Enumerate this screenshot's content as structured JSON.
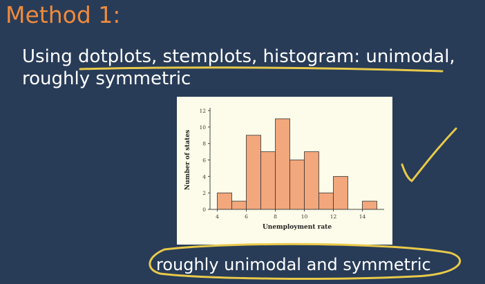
{
  "slide": {
    "title": "Method 1:",
    "bullet": "Using dotplots, stemplots, histogram: unimodal, roughly symmetric",
    "caption": "roughly unimodal and symmetric"
  },
  "colors": {
    "background": "#283c58",
    "title": "#f08a3c",
    "text": "#ffffff",
    "figure_bg": "#fdfbe9",
    "bar_fill": "#f2a77c",
    "annotation_ink": "#e8c94a"
  },
  "annotations": {
    "underline_bullet": true,
    "checkmark": "checkmark-icon",
    "circle_caption": true
  },
  "chart_data": {
    "type": "bar",
    "title": "",
    "xlabel": "Unemployment rate",
    "ylabel": "Number of states",
    "bin_width": 1,
    "bins": [
      4,
      5,
      6,
      7,
      8,
      9,
      10,
      11,
      12,
      13,
      14
    ],
    "values": [
      2,
      1,
      9,
      7,
      11,
      6,
      7,
      2,
      4,
      0,
      1
    ],
    "xlim": [
      3.5,
      15.5
    ],
    "ylim": [
      0,
      12
    ],
    "x_ticks": [
      4,
      6,
      8,
      10,
      12,
      14
    ],
    "y_ticks": [
      0,
      2,
      4,
      6,
      8,
      10,
      12
    ],
    "grid": false,
    "legend": "none"
  }
}
